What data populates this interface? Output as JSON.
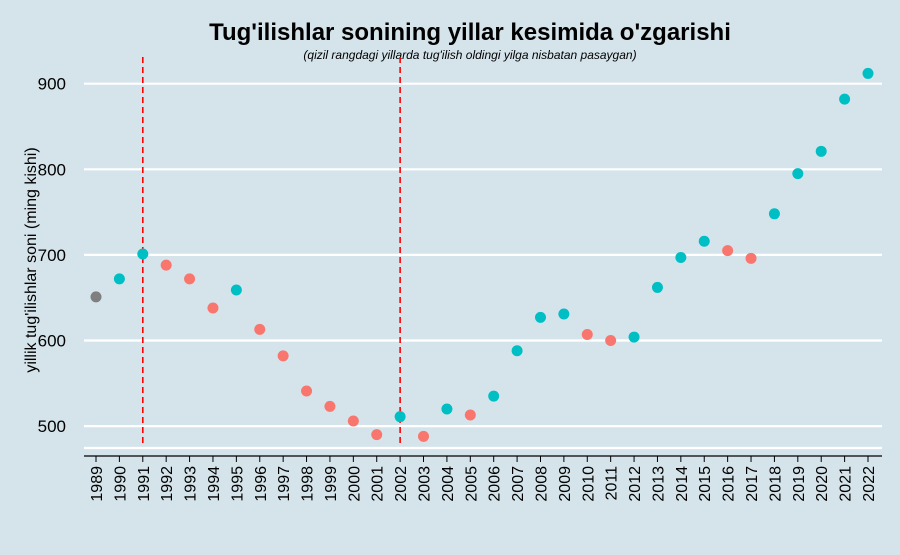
{
  "chart_data": {
    "type": "scatter",
    "title": "Tug'ilishlar sonining yillar kesimida o'zgarishi",
    "subtitle": "(qizil rangdagi yillarda tug'ilish oldingi yilga nisbatan pasaygan)",
    "xlabel": "",
    "ylabel": "yillik tug'ilishlar soni (ming kishi)",
    "ylim": [
      475,
      920
    ],
    "yticks": [
      500,
      600,
      700,
      800,
      900
    ],
    "grid": true,
    "legend": "none",
    "colors": {
      "background": "#d5e4eb",
      "increase": "#00bfc4",
      "decrease": "#f8766d",
      "first": "#7f7f7f",
      "vline": "#ff0000"
    },
    "vlines": [
      1991,
      2002
    ],
    "x": [
      1989,
      1990,
      1991,
      1992,
      1993,
      1994,
      1995,
      1996,
      1997,
      1998,
      1999,
      2000,
      2001,
      2002,
      2003,
      2004,
      2005,
      2006,
      2007,
      2008,
      2009,
      2010,
      2011,
      2012,
      2013,
      2014,
      2015,
      2016,
      2017,
      2018,
      2019,
      2020,
      2021,
      2022
    ],
    "values": [
      651,
      672,
      701,
      688,
      672,
      638,
      659,
      613,
      582,
      541,
      523,
      506,
      490,
      511,
      488,
      520,
      513,
      535,
      588,
      627,
      631,
      607,
      600,
      604,
      662,
      697,
      716,
      705,
      696,
      748,
      795,
      821,
      882,
      912
    ],
    "status": [
      "first",
      "increase",
      "increase",
      "decrease",
      "decrease",
      "decrease",
      "increase",
      "decrease",
      "decrease",
      "decrease",
      "decrease",
      "decrease",
      "decrease",
      "increase",
      "decrease",
      "increase",
      "decrease",
      "increase",
      "increase",
      "increase",
      "increase",
      "decrease",
      "decrease",
      "increase",
      "increase",
      "increase",
      "increase",
      "decrease",
      "decrease",
      "increase",
      "increase",
      "increase",
      "increase",
      "increase"
    ]
  }
}
